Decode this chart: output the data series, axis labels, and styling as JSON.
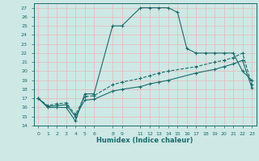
{
  "xlabel": "Humidex (Indice chaleur)",
  "bg_color": "#cde8e5",
  "grid_color": "#b0d4d0",
  "line_color": "#1a6b6b",
  "xlim": [
    -0.5,
    23.5
  ],
  "ylim": [
    14,
    27.5
  ],
  "xticks": [
    0,
    1,
    2,
    3,
    4,
    5,
    6,
    8,
    9,
    11,
    12,
    13,
    14,
    15,
    16,
    17,
    18,
    19,
    20,
    21,
    22,
    23
  ],
  "yticks": [
    14,
    15,
    16,
    17,
    18,
    19,
    20,
    21,
    22,
    23,
    24,
    25,
    26,
    27
  ],
  "series": [
    {
      "x": [
        0,
        1,
        2,
        3,
        4,
        5,
        6,
        8,
        9,
        11,
        12,
        13,
        14,
        15,
        16,
        17,
        18,
        19,
        20,
        21,
        22,
        23
      ],
      "y": [
        17,
        16,
        16,
        16,
        14.5,
        17.5,
        17.5,
        25,
        25,
        27,
        27,
        27,
        27,
        26.5,
        22.5,
        22,
        22,
        22,
        22,
        22,
        20,
        19
      ],
      "linestyle": "-",
      "marker": "+"
    },
    {
      "x": [
        0,
        1,
        2,
        3,
        4,
        5,
        6,
        8,
        9,
        11,
        12,
        13,
        14,
        17,
        19,
        20,
        21,
        22,
        23
      ],
      "y": [
        17,
        16.2,
        16.4,
        16.5,
        15.2,
        17.2,
        17.3,
        18.5,
        18.8,
        19.2,
        19.5,
        19.8,
        20.0,
        20.5,
        21.0,
        21.2,
        21.5,
        22.0,
        18.5
      ],
      "linestyle": "--",
      "marker": "+"
    },
    {
      "x": [
        0,
        1,
        2,
        3,
        4,
        5,
        6,
        8,
        9,
        11,
        12,
        13,
        14,
        17,
        19,
        20,
        21,
        22,
        23
      ],
      "y": [
        17,
        16.1,
        16.2,
        16.3,
        15.0,
        16.8,
        16.9,
        17.8,
        18.0,
        18.3,
        18.6,
        18.8,
        19.0,
        19.8,
        20.2,
        20.5,
        20.8,
        21.2,
        18.2
      ],
      "linestyle": "-",
      "marker": "+"
    }
  ]
}
